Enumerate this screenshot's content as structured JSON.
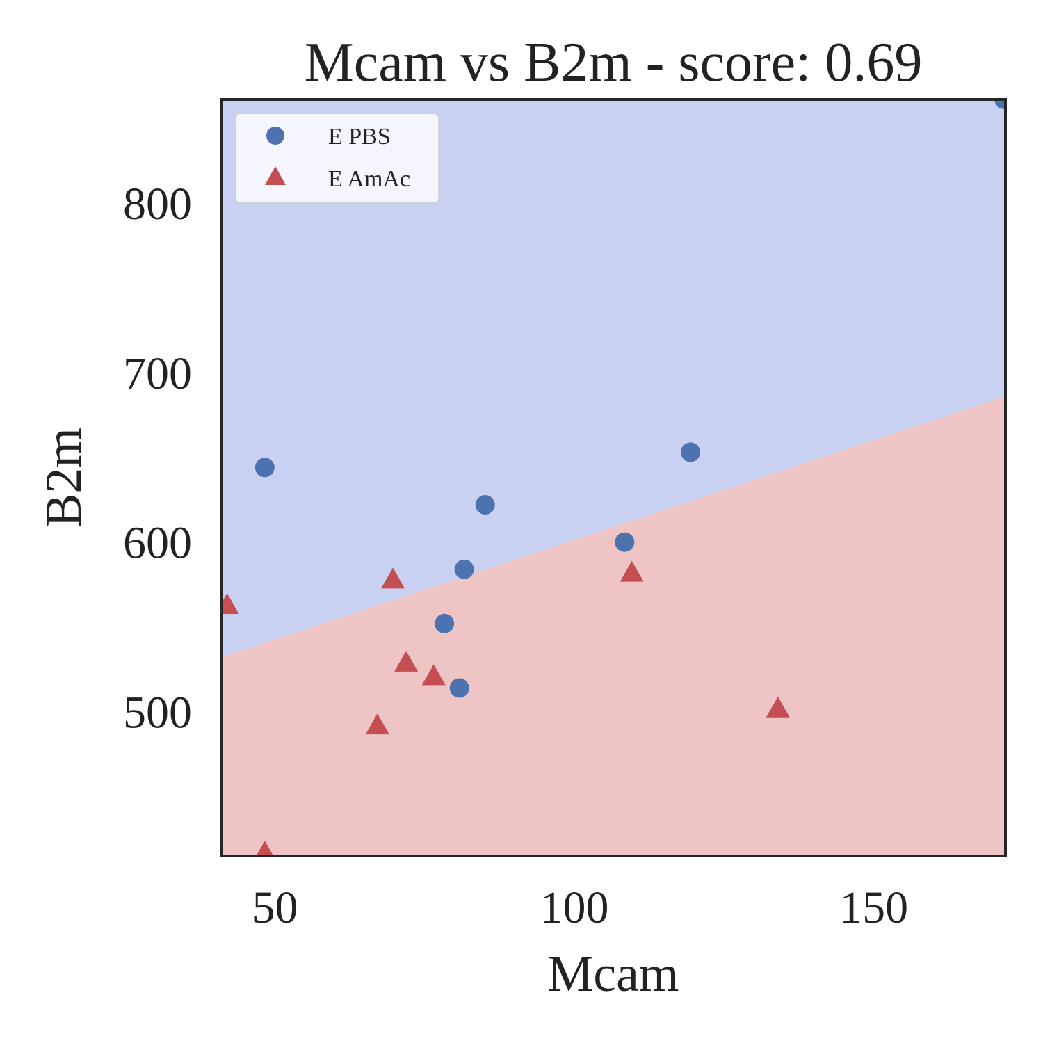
{
  "chart_data": {
    "type": "scatter",
    "title": "Mcam vs B2m - score: 0.69",
    "xlabel": "Mcam",
    "ylabel": "B2m",
    "xlim": [
      41,
      172
    ],
    "ylim": [
      415,
      861
    ],
    "xticks": [
      50,
      100,
      150
    ],
    "yticks": [
      500,
      600,
      700,
      800
    ],
    "grid": false,
    "legend_position": "top-left",
    "decision_boundary": {
      "x": [
        41,
        172
      ],
      "y": [
        532,
        686
      ],
      "above_color": "#c8d1f2",
      "below_color": "#efc4c4",
      "above_class": "E PBS",
      "below_class": "E AmAc"
    },
    "series": [
      {
        "name": "E PBS",
        "marker": "circle",
        "color": "#4c72b0",
        "x": [
          48.3,
          85.1,
          81.6,
          78.3,
          80.8,
          108.4,
          119.4,
          171.8
        ],
        "y": [
          644,
          622,
          584,
          552,
          514,
          600,
          653,
          861
        ]
      },
      {
        "name": "E AmAc",
        "marker": "triangle",
        "color": "#c44e52",
        "x": [
          42.0,
          48.3,
          67.1,
          69.7,
          71.9,
          76.5,
          109.6,
          134.0
        ],
        "y": [
          563,
          417,
          492,
          578,
          529,
          521,
          582,
          502
        ]
      }
    ]
  }
}
